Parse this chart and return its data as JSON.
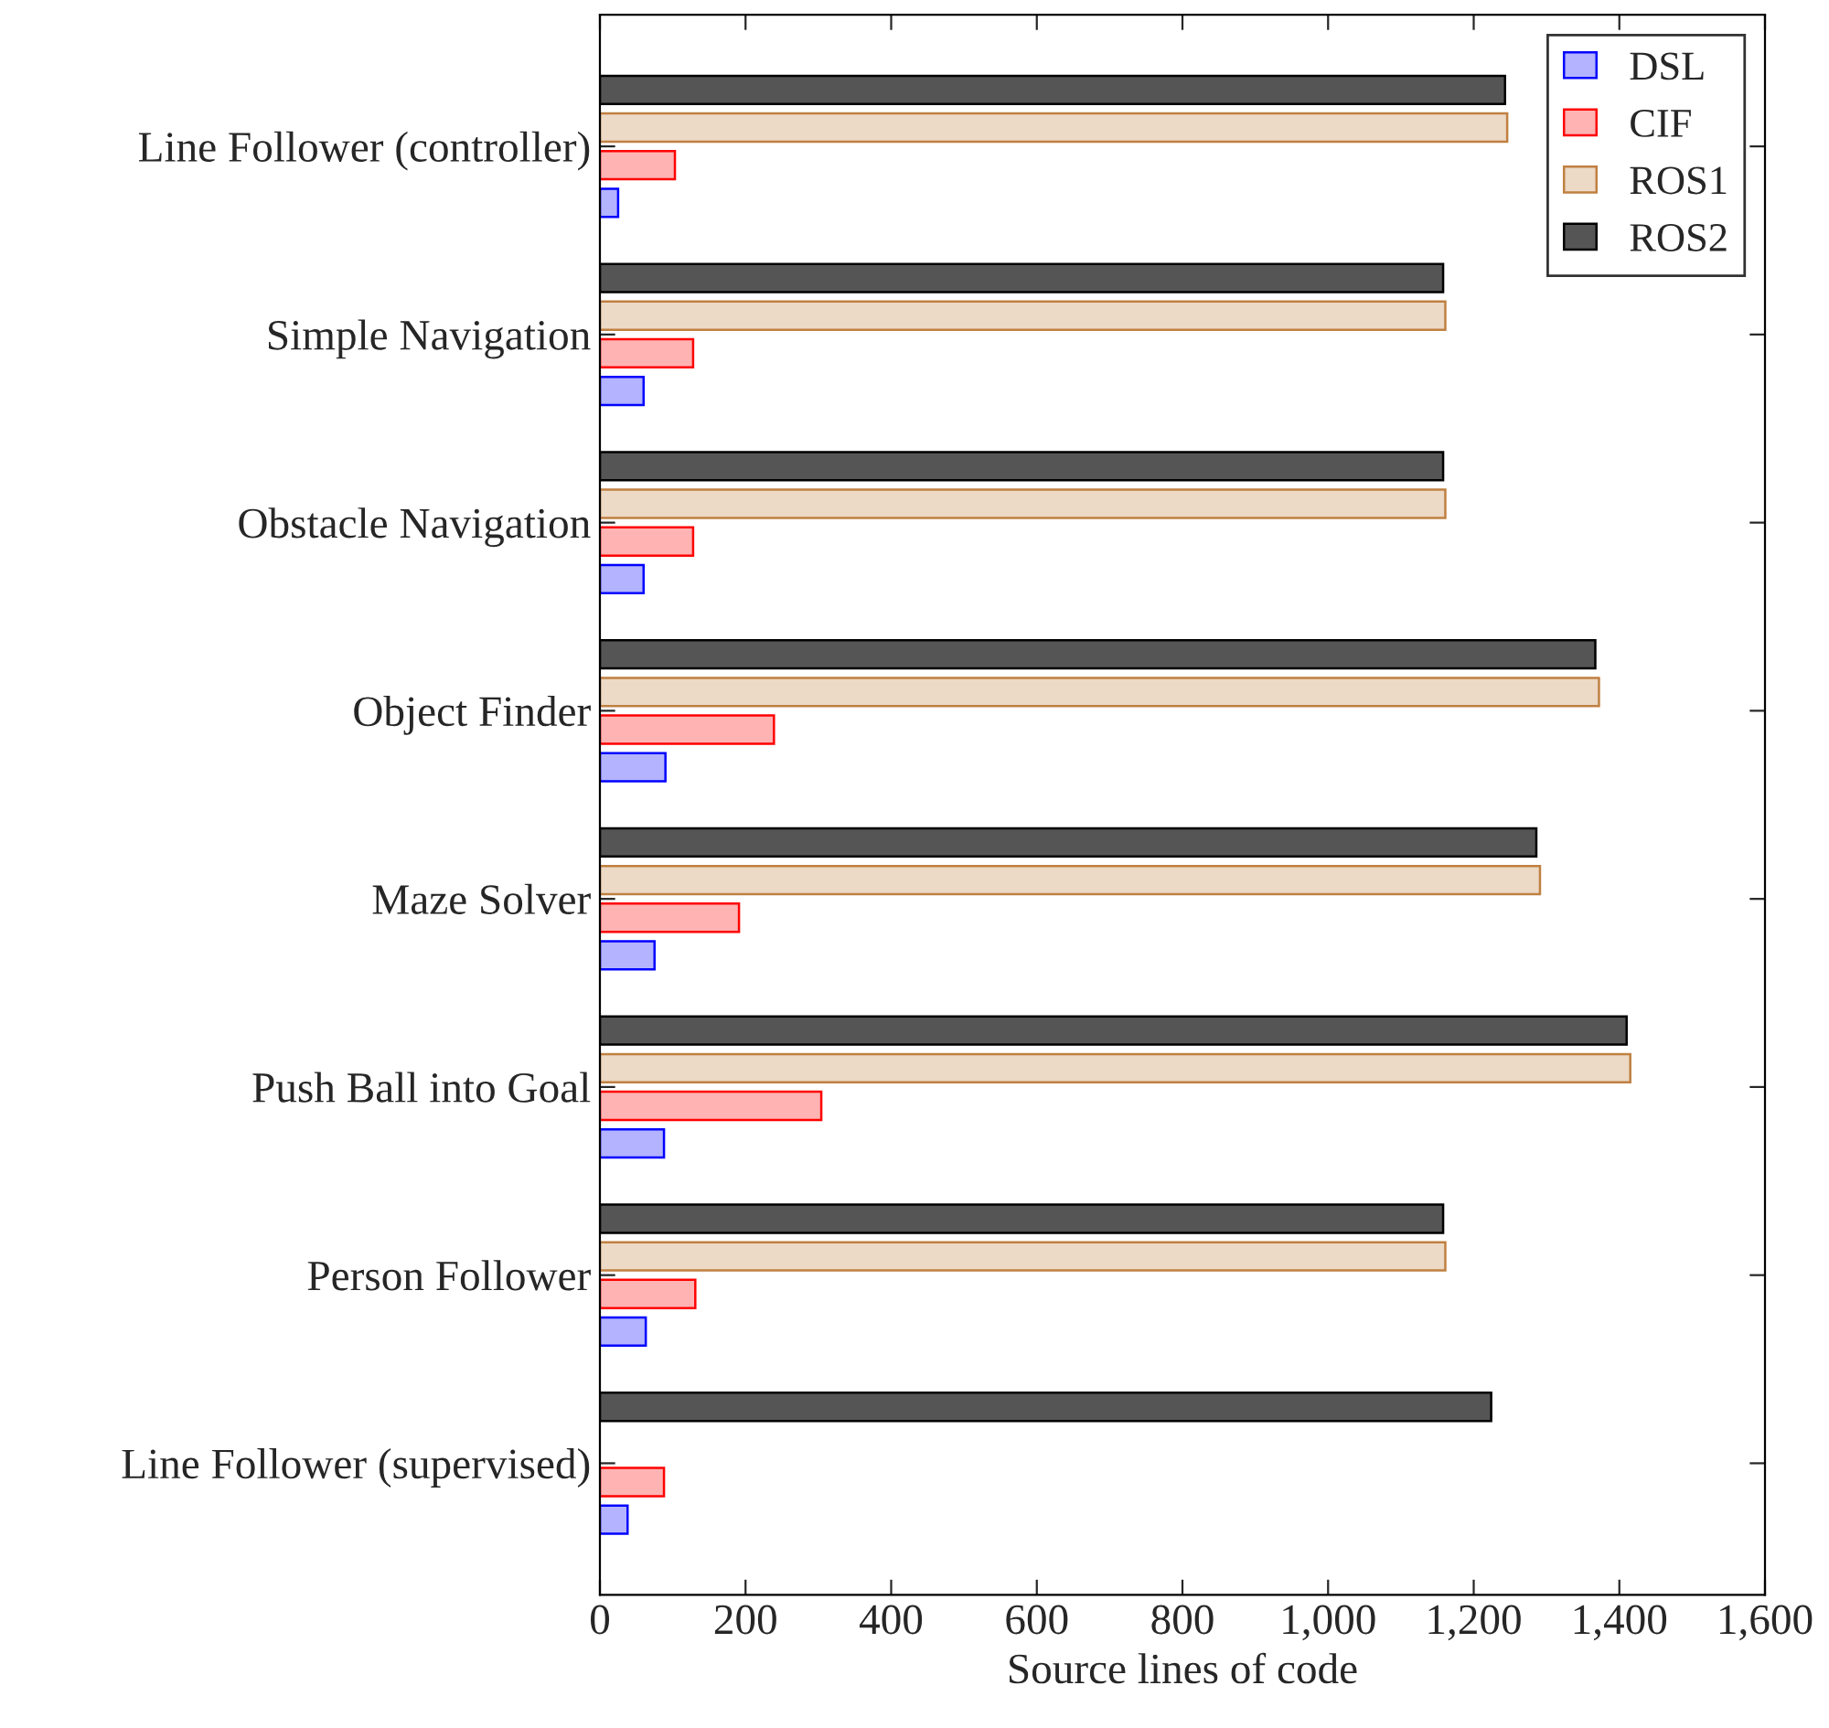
{
  "chart_data": {
    "type": "bar",
    "orientation": "horizontal",
    "xlabel": "Source lines of code",
    "categories": [
      "Line Follower (controller)",
      "Simple Navigation",
      "Obstacle Navigation",
      "Object Finder",
      "Maze Solver",
      "Push Ball into Goal",
      "Person Follower",
      "Line Follower (supervised)"
    ],
    "series": [
      {
        "name": "DSL",
        "color": "#b3b3ff",
        "values": [
          25,
          60,
          60,
          90,
          75,
          88,
          63,
          38
        ]
      },
      {
        "name": "CIF",
        "color": "#ffb3b3",
        "values": [
          103,
          128,
          128,
          239,
          191,
          304,
          131,
          88
        ]
      },
      {
        "name": "ROS1",
        "color": "#ecd9c6",
        "values": [
          1246,
          1161,
          1161,
          1372,
          1291,
          1415,
          1161,
          null
        ]
      },
      {
        "name": "ROS2",
        "color": "#555555",
        "values": [
          1243,
          1158,
          1158,
          1367,
          1286,
          1410,
          1158,
          1224
        ]
      }
    ],
    "xlim": [
      0,
      1600
    ],
    "xticks": [
      0,
      200,
      400,
      600,
      800,
      {
        "value": 1000,
        "label": "1,000"
      },
      {
        "value": 1200,
        "label": "1,200"
      },
      {
        "value": 1400,
        "label": "1,400"
      },
      {
        "value": 1600,
        "label": "1,600"
      }
    ],
    "grid": false,
    "legend": "top right"
  }
}
